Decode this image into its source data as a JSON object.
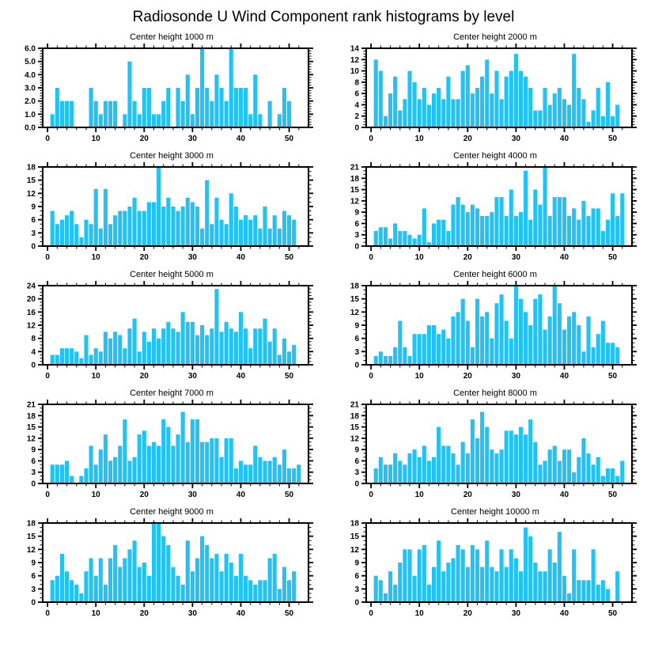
{
  "figure": {
    "title": "Radiosonde U Wind Component rank histograms by level"
  },
  "axis": {
    "bar_color": "#22C3F4",
    "frame_color": "#000000",
    "xlim": [
      -1,
      54
    ],
    "x_major_ticks": [
      0,
      10,
      20,
      30,
      40,
      50
    ],
    "x_tick_labels": [
      "0",
      "10",
      "20",
      "30",
      "40",
      "50"
    ],
    "x_minor_step": 2,
    "grid": "off",
    "legend": "none"
  },
  "chart_data": [
    {
      "type": "bar",
      "title": "Center height 1000 m",
      "xlabel": "",
      "ylabel": "",
      "ylim": [
        0,
        6
      ],
      "ytick_step": 1,
      "y_minor_step": 0.2,
      "ytick_labels": [
        "0.0",
        "1.0",
        "2.0",
        "3.0",
        "4.0",
        "5.0",
        "6.0"
      ],
      "values": [
        1,
        3,
        2,
        2,
        2,
        0,
        0,
        0,
        3,
        2,
        1,
        2,
        2,
        2,
        0,
        1,
        5,
        2,
        1,
        3,
        3,
        1,
        1,
        2,
        3,
        0,
        3,
        2,
        4,
        1,
        3,
        6,
        3,
        2,
        4,
        3,
        2,
        6,
        3,
        3,
        3,
        1,
        4,
        1,
        0,
        2,
        0,
        1,
        3,
        2,
        0,
        0
      ]
    },
    {
      "type": "bar",
      "title": "Center height 2000 m",
      "xlabel": "",
      "ylabel": "",
      "ylim": [
        0,
        14
      ],
      "ytick_step": 2,
      "y_minor_step": 0.5,
      "ytick_labels": [
        "0",
        "2",
        "4",
        "6",
        "8",
        "10",
        "12",
        "14"
      ],
      "values": [
        12,
        10,
        2,
        6,
        9,
        3,
        5,
        10,
        8,
        5,
        7,
        4,
        6,
        7,
        5,
        9,
        5,
        5,
        10,
        11,
        6,
        7,
        9,
        12,
        6,
        10,
        5,
        9,
        10,
        13,
        10,
        9,
        7,
        3,
        3,
        7,
        4,
        6,
        7,
        5,
        4,
        13,
        7,
        5,
        1,
        3,
        7,
        2,
        8,
        2,
        4,
        0
      ]
    },
    {
      "type": "bar",
      "title": "Center height 3000 m",
      "xlabel": "",
      "ylabel": "",
      "ylim": [
        0,
        18
      ],
      "ytick_step": 3,
      "y_minor_step": 1,
      "ytick_labels": [
        "0",
        "3",
        "6",
        "9",
        "12",
        "15",
        "18"
      ],
      "values": [
        8,
        5,
        6,
        7,
        8,
        5,
        2,
        6,
        5,
        13,
        4,
        13,
        5,
        7,
        8,
        8,
        9,
        11,
        8,
        8,
        10,
        10,
        18,
        9,
        11,
        9,
        8,
        9,
        11,
        10,
        9,
        4,
        15,
        5,
        11,
        6,
        5,
        12,
        9,
        6,
        7,
        6,
        7,
        4,
        9,
        4,
        7,
        4,
        8,
        7,
        6,
        0
      ]
    },
    {
      "type": "bar",
      "title": "Center height 4000 m",
      "xlabel": "",
      "ylabel": "",
      "ylim": [
        0,
        21
      ],
      "ytick_step": 3,
      "y_minor_step": 1,
      "ytick_labels": [
        "0",
        "3",
        "6",
        "9",
        "12",
        "15",
        "18",
        "21"
      ],
      "values": [
        4,
        5,
        5,
        2,
        6,
        4,
        4,
        3,
        2,
        3,
        10,
        1,
        6,
        7,
        7,
        4,
        11,
        13,
        11,
        9,
        11,
        10,
        8,
        8,
        9,
        13,
        13,
        8,
        15,
        8,
        9,
        20,
        7,
        15,
        11,
        21,
        8,
        13,
        13,
        13,
        8,
        10,
        7,
        12,
        8,
        10,
        10,
        4,
        7,
        14,
        8,
        14
      ]
    },
    {
      "type": "bar",
      "title": "Center height 5000 m",
      "xlabel": "",
      "ylabel": "",
      "ylim": [
        0,
        24
      ],
      "ytick_step": 4,
      "y_minor_step": 1,
      "ytick_labels": [
        "0",
        "4",
        "8",
        "12",
        "16",
        "20",
        "24"
      ],
      "values": [
        3,
        3,
        5,
        5,
        5,
        4,
        2,
        9,
        3,
        5,
        4,
        10,
        8,
        10,
        9,
        5,
        11,
        14,
        4,
        10,
        7,
        11,
        8,
        11,
        13,
        11,
        10,
        16,
        13,
        13,
        9,
        12,
        9,
        11,
        23,
        10,
        13,
        11,
        10,
        16,
        11,
        5,
        11,
        11,
        14,
        7,
        11,
        3,
        8,
        4,
        6,
        0
      ]
    },
    {
      "type": "bar",
      "title": "Center height 6000 m",
      "xlabel": "",
      "ylabel": "",
      "ylim": [
        0,
        18
      ],
      "ytick_step": 3,
      "y_minor_step": 1,
      "ytick_labels": [
        "0",
        "3",
        "6",
        "9",
        "12",
        "15",
        "18"
      ],
      "values": [
        2,
        3,
        2,
        2,
        4,
        10,
        4,
        2,
        7,
        7,
        7,
        9,
        9,
        7,
        8,
        6,
        11,
        12,
        15,
        10,
        4,
        15,
        11,
        12,
        6,
        14,
        16,
        10,
        6,
        18,
        15,
        12,
        9,
        15,
        16,
        8,
        11,
        18,
        14,
        8,
        11,
        12,
        9,
        3,
        11,
        4,
        7,
        10,
        5,
        5,
        4,
        0
      ]
    },
    {
      "type": "bar",
      "title": "Center height 7000 m",
      "xlabel": "",
      "ylabel": "",
      "ylim": [
        0,
        21
      ],
      "ytick_step": 3,
      "y_minor_step": 1,
      "ytick_labels": [
        "0",
        "3",
        "6",
        "9",
        "12",
        "15",
        "18",
        "21"
      ],
      "values": [
        5,
        5,
        5,
        6,
        2,
        0,
        2,
        4,
        10,
        5,
        9,
        13,
        6,
        7,
        10,
        17,
        6,
        7,
        13,
        14,
        10,
        11,
        10,
        17,
        15,
        10,
        13,
        19,
        11,
        17,
        17,
        11,
        11,
        12,
        12,
        7,
        12,
        12,
        4,
        6,
        5,
        5,
        10,
        7,
        6,
        6,
        7,
        5,
        9,
        4,
        4,
        5
      ]
    },
    {
      "type": "bar",
      "title": "Center height 8000 m",
      "xlabel": "",
      "ylabel": "",
      "ylim": [
        0,
        21
      ],
      "ytick_step": 3,
      "y_minor_step": 1,
      "ytick_labels": [
        "0",
        "3",
        "6",
        "9",
        "12",
        "15",
        "18",
        "21"
      ],
      "values": [
        4,
        7,
        5,
        5,
        8,
        6,
        5,
        8,
        9,
        7,
        10,
        6,
        7,
        15,
        10,
        10,
        8,
        5,
        11,
        8,
        17,
        12,
        19,
        15,
        9,
        8,
        9,
        14,
        14,
        13,
        15,
        13,
        17,
        11,
        5,
        6,
        9,
        10,
        6,
        9,
        9,
        3,
        7,
        12,
        8,
        5,
        7,
        2,
        4,
        4,
        2,
        6
      ]
    },
    {
      "type": "bar",
      "title": "Center height 9000 m",
      "xlabel": "",
      "ylabel": "",
      "ylim": [
        0,
        18
      ],
      "ytick_step": 3,
      "y_minor_step": 1,
      "ytick_labels": [
        "0",
        "3",
        "6",
        "9",
        "12",
        "15",
        "18"
      ],
      "values": [
        5,
        6,
        11,
        7,
        5,
        4,
        2,
        7,
        10,
        6,
        10,
        4,
        10,
        13,
        8,
        10,
        12,
        14,
        8,
        9,
        6,
        18,
        18,
        15,
        13,
        8,
        6,
        4,
        14,
        7,
        10,
        15,
        13,
        10,
        11,
        7,
        11,
        9,
        6,
        11,
        6,
        5,
        4,
        5,
        5,
        10,
        11,
        3,
        8,
        5,
        7,
        0
      ]
    },
    {
      "type": "bar",
      "title": "Center height 10000 m",
      "xlabel": "",
      "ylabel": "",
      "ylim": [
        0,
        18
      ],
      "ytick_step": 3,
      "y_minor_step": 1,
      "ytick_labels": [
        "0",
        "3",
        "6",
        "9",
        "12",
        "15",
        "18"
      ],
      "values": [
        6,
        5,
        2,
        7,
        4,
        9,
        12,
        12,
        6,
        12,
        13,
        4,
        8,
        14,
        7,
        9,
        10,
        13,
        12,
        8,
        13,
        12,
        8,
        14,
        8,
        7,
        12,
        8,
        12,
        10,
        7,
        17,
        15,
        9,
        7,
        7,
        12,
        9,
        16,
        6,
        2,
        12,
        5,
        5,
        5,
        12,
        4,
        5,
        3,
        0,
        7,
        0
      ]
    }
  ]
}
